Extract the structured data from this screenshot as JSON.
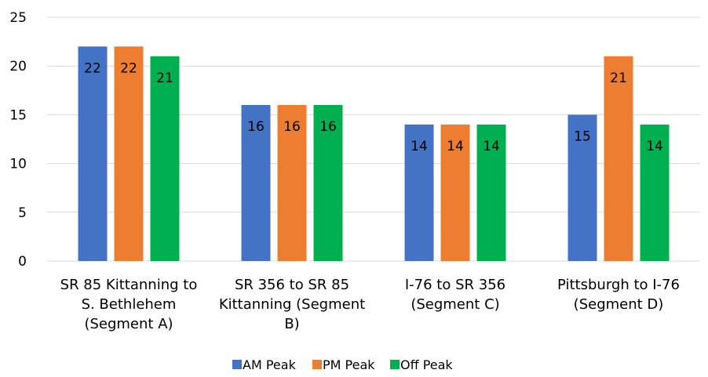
{
  "chart_data": {
    "type": "bar",
    "categories": [
      [
        "SR 85 Kittanning to",
        "S. Bethlehem",
        "(Segment A)"
      ],
      [
        "SR 356 to SR 85",
        "Kittanning (Segment",
        "B)"
      ],
      [
        "I-76 to SR 356",
        "(Segment C)"
      ],
      [
        "Pittsburgh to I-76",
        "(Segment D)"
      ]
    ],
    "series": [
      {
        "name": "AM Peak",
        "color": "#4472C4",
        "values": [
          22,
          16,
          14,
          15
        ]
      },
      {
        "name": "PM Peak",
        "color": "#ED7D31",
        "values": [
          22,
          16,
          14,
          21
        ]
      },
      {
        "name": "Off Peak",
        "color": "#00B050",
        "values": [
          21,
          16,
          14,
          14
        ]
      }
    ],
    "ylim": [
      0,
      25
    ],
    "yticks": [
      0,
      5,
      10,
      15,
      20,
      25
    ],
    "grid": true,
    "legend_position": "bottom",
    "data_labels": true
  }
}
